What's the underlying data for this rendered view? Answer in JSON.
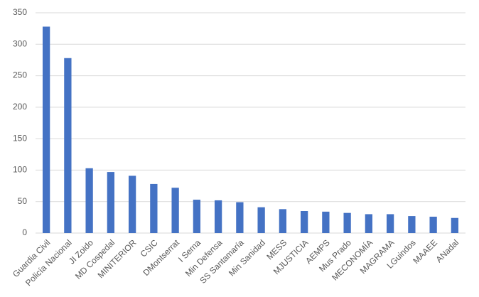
{
  "chart_data": {
    "type": "bar",
    "categories": [
      "Guardia Civil",
      "Policía Nacional",
      "JI Zoido",
      "MD Cospedal",
      "MINITERIOR",
      "CSIC",
      "DMontserrat",
      "I Serna",
      "Min Defensa",
      "SS Santamaría",
      "Min Sanidad",
      "MESS",
      "MJUSTICIA",
      "AEMPS",
      "Mus Prado",
      "MECONOMÍA",
      "MAGRAMA",
      "LGuindos",
      "MAAEE",
      "ANadal"
    ],
    "values": [
      328,
      278,
      103,
      97,
      91,
      78,
      72,
      53,
      52,
      49,
      41,
      38,
      35,
      34,
      32,
      30,
      30,
      27,
      26,
      24
    ],
    "color": "#4472c4",
    "ylim": [
      0,
      350
    ],
    "yticks": [
      0,
      50,
      100,
      150,
      200,
      250,
      300,
      350
    ],
    "grid": true
  }
}
